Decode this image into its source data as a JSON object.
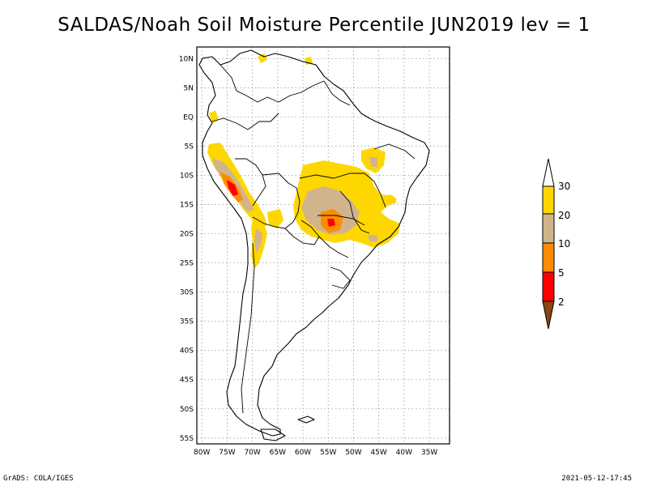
{
  "title": "SALDAS/Noah Soil Moisture Percentile JUN2019 lev = 1",
  "footer": {
    "left": "GrADS: COLA/IGES",
    "right": "2021-05-12-17:45"
  },
  "map": {
    "lon_range": [
      -81,
      -31
    ],
    "lat_range": [
      -56,
      12
    ],
    "lon_ticks": [
      "80W",
      "75W",
      "70W",
      "65W",
      "60W",
      "55W",
      "50W",
      "45W",
      "40W",
      "35W"
    ],
    "lat_ticks": [
      "10N",
      "5N",
      "EQ",
      "5S",
      "10S",
      "15S",
      "20S",
      "25S",
      "30S",
      "35S",
      "40S",
      "45S",
      "50S",
      "55S"
    ],
    "grid": "dotted",
    "data_colors": {
      "below_2": "#8b4513",
      "2_5": "#ff0000",
      "5_10": "#ff8c00",
      "10_20": "#d2b48c",
      "20_30": "#ffd700",
      "above_30": "#ffffff"
    }
  },
  "colorbar": {
    "labels": [
      "30",
      "20",
      "10",
      "5",
      "2"
    ],
    "colors": [
      "#ffffff",
      "#ffd700",
      "#d2b48c",
      "#ff8c00",
      "#ff0000",
      "#8b4513"
    ]
  }
}
